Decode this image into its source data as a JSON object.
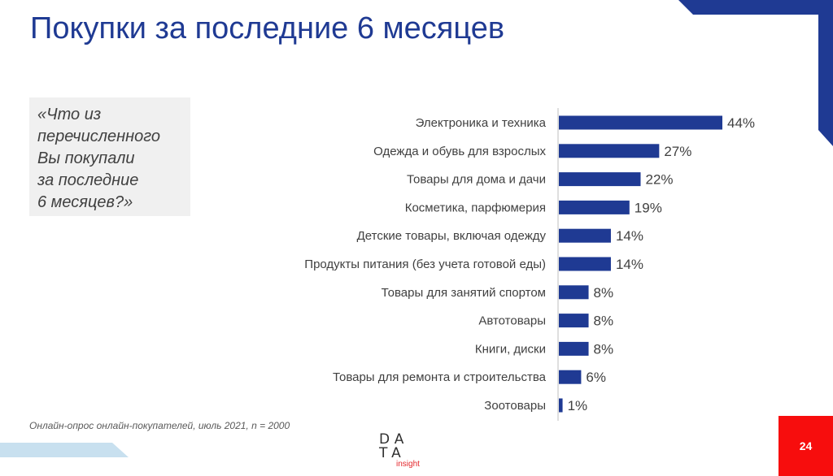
{
  "slide": {
    "title": "Покупки за последние 6 месяцев",
    "question_lines": [
      "«Что из",
      "перечисленного",
      "Вы покупали",
      "за последние",
      "6 месяцев?»"
    ],
    "footnote": "Онлайн-опрос онлайн-покупателей, июль 2021, n = 2000",
    "page_number": "24",
    "logo": {
      "line1": "DA",
      "line2": "TA",
      "line3": "insight"
    }
  },
  "colors": {
    "bar": "#1f3a93",
    "title": "#1f3a93",
    "accent_red": "#f70d0d",
    "stripe": "#c8e0ef"
  },
  "chart_data": {
    "type": "bar",
    "orientation": "horizontal",
    "categories": [
      "Электроника и техника",
      "Одежда и обувь для взрослых",
      "Товары для дома и дачи",
      "Косметика, парфюмерия",
      "Детские товары, включая одежду",
      "Продукты питания (без учета готовой еды)",
      "Товары для занятий спортом",
      "Автотовары",
      "Книги, диски",
      "Товары для ремонта и строительства",
      "Зоотовары"
    ],
    "values": [
      44,
      27,
      22,
      19,
      14,
      14,
      8,
      8,
      8,
      6,
      1
    ],
    "value_labels": [
      "44%",
      "27%",
      "22%",
      "19%",
      "14%",
      "14%",
      "8%",
      "8%",
      "8%",
      "6%",
      "1%"
    ],
    "unit": "%",
    "xlim": [
      0,
      44
    ]
  }
}
